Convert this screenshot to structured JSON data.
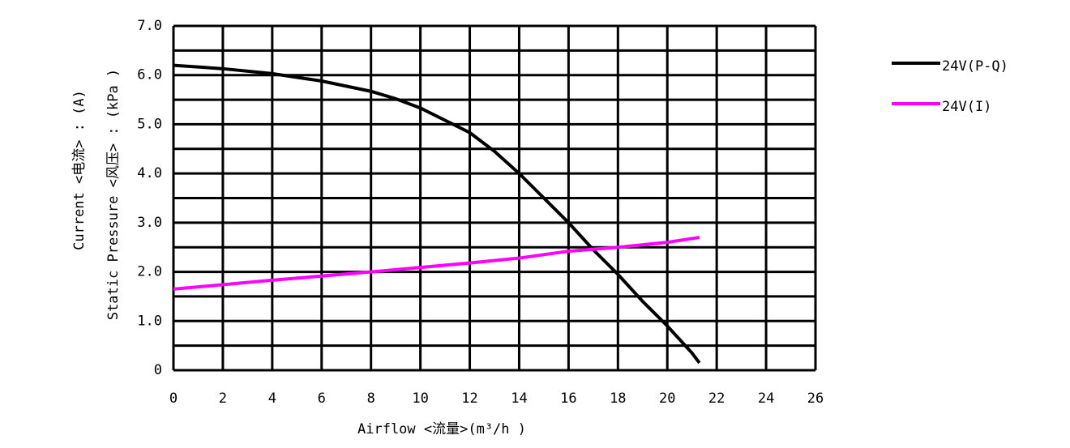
{
  "chart_data": {
    "type": "line",
    "x_label": "Airflow <流量>(m³/h )",
    "y_label": "Static Pressure <风压> : (kPa )",
    "y_label_color": "#000000",
    "y2_label": "Current <电流> : (A)",
    "y2_label_color": "#ff00ff",
    "xlim": [
      0,
      26
    ],
    "xticks": [
      0,
      2,
      4,
      6,
      8,
      10,
      12,
      14,
      16,
      18,
      20,
      22,
      24,
      26
    ],
    "ylim": [
      0,
      7
    ],
    "yticks": [
      0,
      {
        "value": 1,
        "label": "1.0"
      },
      {
        "value": 2,
        "label": "2.0"
      },
      {
        "value": 3,
        "label": "3.0"
      },
      {
        "value": 4,
        "label": "4.0"
      },
      {
        "value": 5,
        "label": "5.0"
      },
      {
        "value": 6,
        "label": "6.0"
      },
      {
        "value": 7,
        "label": "7.0"
      }
    ],
    "yminorticks": [
      0.5,
      1.5,
      2.5,
      3.5,
      4.5,
      5.5,
      6.5
    ],
    "grid": true,
    "legend": "right",
    "series": [
      {
        "name": "24V(P-Q)",
        "color": "#000000",
        "x": [
          0,
          2,
          4,
          6,
          8,
          9,
          10,
          12,
          13,
          14,
          15,
          16,
          17,
          18,
          19,
          20,
          21,
          21.3
        ],
        "values": [
          6.2,
          6.13,
          6.03,
          5.88,
          5.67,
          5.52,
          5.33,
          4.83,
          4.45,
          4.0,
          3.5,
          3.0,
          2.45,
          1.95,
          1.4,
          0.9,
          0.35,
          0.15
        ]
      },
      {
        "name": "24V(I)",
        "color": "#ff00ff",
        "x": [
          0,
          4,
          8,
          12,
          14,
          16,
          18,
          20,
          21.3
        ],
        "values": [
          1.65,
          1.83,
          2.0,
          2.18,
          2.28,
          2.42,
          2.5,
          2.6,
          2.7
        ]
      }
    ]
  }
}
